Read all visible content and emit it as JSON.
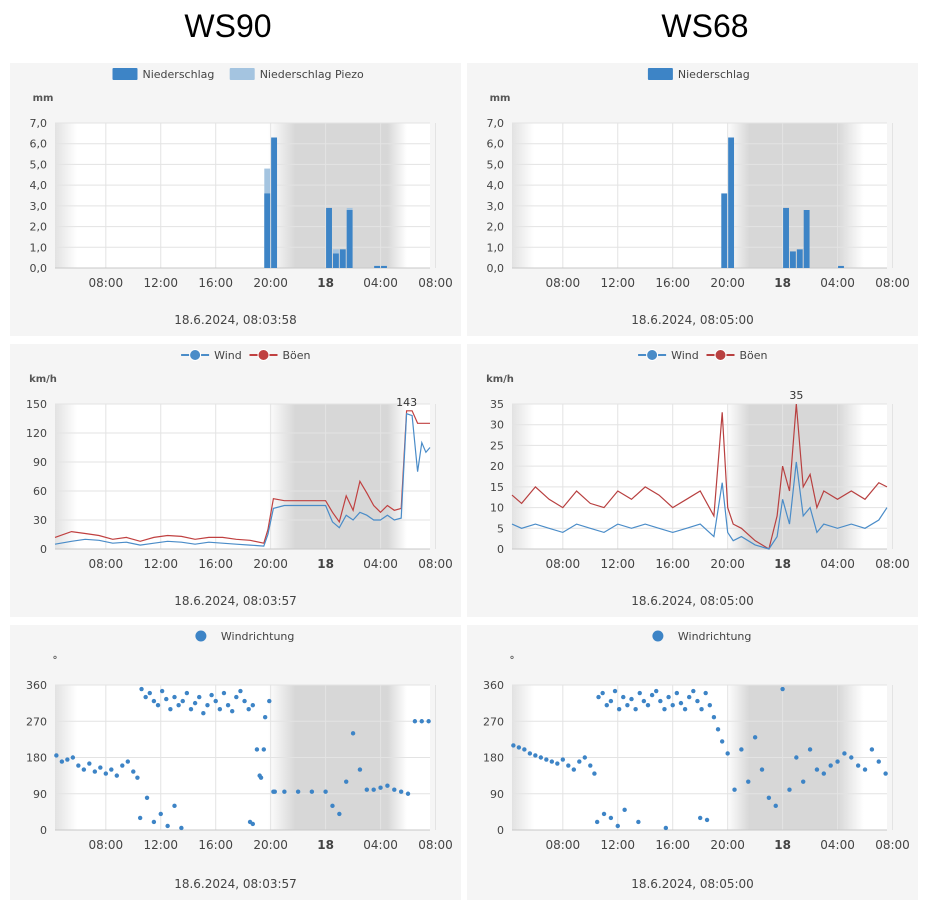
{
  "stations": [
    {
      "title": "WS90"
    },
    {
      "title": "WS68"
    }
  ],
  "chart_data": [
    {
      "id": "ws90-rain",
      "type": "bar",
      "station": "WS90",
      "legend": [
        "Niederschlag",
        "Niederschlag Piezo"
      ],
      "ylabel": "mm",
      "ylim": [
        0,
        7
      ],
      "yticks": [
        "0,0",
        "1,0",
        "2,0",
        "3,0",
        "4,0",
        "5,0",
        "6,0",
        "7,0"
      ],
      "xticks": [
        "08:00",
        "12:00",
        "16:00",
        "20:00",
        "18",
        "04:00",
        "08:00"
      ],
      "x_start_hour": 4.3,
      "x_end_hour": 31.6,
      "night": {
        "start": 19.8,
        "full_start": 21.8,
        "full_end": 28.5,
        "end": 29.9
      },
      "timestamp": "18.6.2024, 08:03:58",
      "series": [
        {
          "name": "Niederschlag Piezo",
          "x": [
            19.75,
            20.25,
            24.25,
            24.75,
            25.25,
            25.75,
            27.75,
            28.25
          ],
          "values": [
            4.8,
            6.2,
            2.8,
            0.9,
            0.9,
            2.9,
            0.1,
            0.1
          ]
        },
        {
          "name": "Niederschlag",
          "x": [
            19.75,
            20.25,
            24.25,
            24.75,
            25.25,
            25.75,
            27.75,
            28.25
          ],
          "values": [
            3.6,
            6.3,
            2.9,
            0.7,
            0.9,
            2.8,
            0.1,
            0.1
          ]
        }
      ]
    },
    {
      "id": "ws68-rain",
      "type": "bar",
      "station": "WS68",
      "legend": [
        "Niederschlag"
      ],
      "ylabel": "mm",
      "ylim": [
        0,
        7
      ],
      "yticks": [
        "0,0",
        "1,0",
        "2,0",
        "3,0",
        "4,0",
        "5,0",
        "6,0",
        "7,0"
      ],
      "xticks": [
        "08:00",
        "12:00",
        "16:00",
        "20:00",
        "18",
        "04:00",
        "08:00"
      ],
      "x_start_hour": 4.3,
      "x_end_hour": 31.6,
      "night": {
        "start": 19.9,
        "full_start": 21.6,
        "full_end": 28.0,
        "end": 29.9
      },
      "timestamp": "18.6.2024, 08:05:00",
      "series": [
        {
          "name": "Niederschlag",
          "x": [
            19.75,
            20.25,
            24.25,
            24.75,
            25.25,
            25.75,
            28.25
          ],
          "values": [
            3.6,
            6.3,
            2.9,
            0.8,
            0.9,
            2.8,
            0.1
          ]
        }
      ]
    },
    {
      "id": "ws90-wind",
      "type": "line",
      "station": "WS90",
      "legend": [
        "Wind",
        "Böen"
      ],
      "ylabel": "km/h",
      "ylim": [
        0,
        150
      ],
      "yticks": [
        "0",
        "30",
        "60",
        "90",
        "120",
        "150"
      ],
      "xticks": [
        "08:00",
        "12:00",
        "16:00",
        "20:00",
        "18",
        "04:00",
        "08:00"
      ],
      "x_start_hour": 4.3,
      "x_end_hour": 31.6,
      "night": {
        "start": 19.8,
        "full_start": 21.8,
        "full_end": 28.5,
        "end": 29.9
      },
      "max_label": "143",
      "timestamp": "18.6.2024, 08:03:57",
      "series": [
        {
          "name": "Wind",
          "color": "#4a8cc8",
          "x": [
            4.3,
            5.5,
            6.5,
            7.5,
            8.5,
            9.5,
            10.5,
            11.5,
            12.5,
            13.5,
            14.5,
            15.5,
            16.5,
            17.5,
            18.5,
            19.5,
            19.8,
            20.2,
            21,
            22,
            23,
            24,
            24.5,
            25,
            25.5,
            26,
            26.5,
            27,
            27.5,
            28,
            28.5,
            29,
            29.5,
            29.9,
            30.3,
            30.7,
            31,
            31.3,
            31.6
          ],
          "values": [
            5,
            8,
            10,
            9,
            6,
            7,
            4,
            6,
            8,
            7,
            5,
            7,
            6,
            5,
            4,
            3,
            15,
            42,
            45,
            45,
            45,
            45,
            28,
            22,
            35,
            30,
            38,
            35,
            30,
            30,
            35,
            30,
            32,
            140,
            138,
            80,
            110,
            100,
            105
          ]
        },
        {
          "name": "Böen",
          "color": "#c04040",
          "x": [
            4.3,
            5.5,
            6.5,
            7.5,
            8.5,
            9.5,
            10.5,
            11.5,
            12.5,
            13.5,
            14.5,
            15.5,
            16.5,
            17.5,
            18.5,
            19.5,
            19.8,
            20.2,
            21,
            22,
            23,
            24,
            24.5,
            25,
            25.5,
            26,
            26.5,
            27,
            27.5,
            28,
            28.5,
            29,
            29.5,
            29.9,
            30.3,
            30.7,
            31,
            31.6
          ],
          "values": [
            12,
            18,
            16,
            14,
            10,
            12,
            8,
            12,
            14,
            13,
            10,
            12,
            12,
            10,
            9,
            6,
            20,
            52,
            50,
            50,
            50,
            50,
            38,
            28,
            55,
            40,
            70,
            58,
            45,
            38,
            45,
            40,
            42,
            143,
            143,
            130,
            130,
            130
          ]
        }
      ]
    },
    {
      "id": "ws68-wind",
      "type": "line",
      "station": "WS68",
      "legend": [
        "Wind",
        "Böen"
      ],
      "ylabel": "km/h",
      "ylim": [
        0,
        35
      ],
      "yticks": [
        "0",
        "5",
        "10",
        "15",
        "20",
        "25",
        "30",
        "35"
      ],
      "xticks": [
        "08:00",
        "12:00",
        "16:00",
        "20:00",
        "18",
        "04:00",
        "08:00"
      ],
      "x_start_hour": 4.3,
      "x_end_hour": 31.6,
      "night": {
        "start": 19.9,
        "full_start": 21.6,
        "full_end": 28.0,
        "end": 29.9
      },
      "max_label": "35",
      "timestamp": "18.6.2024, 08:05:00",
      "series": [
        {
          "name": "Wind",
          "color": "#4a8cc8",
          "x": [
            4.3,
            5,
            6,
            7,
            8,
            9,
            10,
            11,
            12,
            13,
            14,
            15,
            16,
            17,
            18,
            19,
            19.6,
            20,
            20.4,
            21,
            22,
            23,
            23.6,
            24,
            24.5,
            25,
            25.5,
            26,
            26.5,
            27,
            28,
            29,
            30,
            31,
            31.6
          ],
          "values": [
            6,
            5,
            6,
            5,
            4,
            6,
            5,
            4,
            6,
            5,
            6,
            5,
            4,
            5,
            6,
            3,
            16,
            4,
            2,
            3,
            1,
            0,
            3,
            12,
            6,
            21,
            8,
            10,
            4,
            6,
            5,
            6,
            5,
            7,
            10
          ]
        },
        {
          "name": "Böen",
          "color": "#b84040",
          "x": [
            4.3,
            5,
            6,
            7,
            8,
            9,
            10,
            11,
            12,
            13,
            14,
            15,
            16,
            17,
            18,
            19,
            19.6,
            20,
            20.4,
            21,
            22,
            23,
            23.6,
            24,
            24.5,
            25,
            25.5,
            26,
            26.5,
            27,
            28,
            29,
            30,
            31,
            31.6
          ],
          "values": [
            13,
            11,
            15,
            12,
            10,
            14,
            11,
            10,
            14,
            12,
            15,
            13,
            10,
            12,
            14,
            8,
            33,
            10,
            6,
            5,
            2,
            0,
            8,
            20,
            14,
            35,
            15,
            18,
            10,
            14,
            12,
            14,
            12,
            16,
            15
          ]
        }
      ]
    },
    {
      "id": "ws90-dir",
      "type": "scatter",
      "station": "WS90",
      "legend": [
        "Windrichtung"
      ],
      "ylabel": "°",
      "ylim": [
        0,
        360
      ],
      "yticks": [
        "0",
        "90",
        "180",
        "270",
        "360"
      ],
      "xticks": [
        "08:00",
        "12:00",
        "16:00",
        "20:00",
        "18",
        "04:00",
        "08:00"
      ],
      "x_start_hour": 4.3,
      "x_end_hour": 31.6,
      "night": {
        "start": 19.8,
        "full_start": 21.8,
        "full_end": 28.5,
        "end": 29.9
      },
      "timestamp": "18.6.2024, 08:03:57",
      "series": [
        {
          "name": "Windrichtung",
          "x": [
            4.4,
            4.8,
            5.2,
            5.6,
            6.0,
            6.4,
            6.8,
            7.2,
            7.6,
            8.0,
            8.4,
            8.8,
            9.2,
            9.6,
            10.0,
            10.3,
            10.6,
            10.9,
            11.2,
            11.5,
            11.8,
            12.1,
            12.4,
            12.7,
            13.0,
            13.3,
            13.6,
            13.9,
            14.2,
            14.5,
            14.8,
            15.1,
            15.4,
            15.7,
            16.0,
            16.3,
            16.6,
            16.9,
            17.2,
            17.5,
            17.8,
            18.1,
            18.4,
            18.7,
            19.0,
            19.3,
            19.6,
            19.9,
            20.2,
            10.5,
            11.0,
            11.5,
            12.0,
            12.5,
            13.0,
            13.5,
            18.5,
            18.7,
            19.2,
            19.5,
            20.3,
            21,
            22,
            23,
            24,
            24.5,
            25,
            25.5,
            26,
            26.5,
            27,
            27.5,
            28,
            28.5,
            29,
            29.5,
            30,
            30.5,
            31,
            31.5
          ],
          "values": [
            185,
            170,
            175,
            180,
            160,
            150,
            165,
            145,
            155,
            140,
            150,
            135,
            160,
            170,
            145,
            130,
            350,
            330,
            340,
            320,
            310,
            345,
            325,
            300,
            330,
            310,
            320,
            340,
            300,
            315,
            330,
            290,
            310,
            335,
            320,
            300,
            340,
            310,
            295,
            330,
            345,
            320,
            300,
            310,
            200,
            130,
            280,
            320,
            95,
            30,
            80,
            20,
            40,
            10,
            60,
            5,
            20,
            15,
            135,
            200,
            95,
            95,
            95,
            95,
            95,
            60,
            40,
            120,
            240,
            150,
            100,
            100,
            105,
            110,
            100,
            95,
            90,
            270,
            270,
            270
          ]
        }
      ]
    },
    {
      "id": "ws68-dir",
      "type": "scatter",
      "station": "WS68",
      "legend": [
        "Windrichtung"
      ],
      "ylabel": "°",
      "ylim": [
        0,
        360
      ],
      "yticks": [
        "0",
        "90",
        "180",
        "270",
        "360"
      ],
      "xticks": [
        "08:00",
        "12:00",
        "16:00",
        "20:00",
        "18",
        "04:00",
        "08:00"
      ],
      "x_start_hour": 4.3,
      "x_end_hour": 31.6,
      "night": {
        "start": 19.9,
        "full_start": 21.6,
        "full_end": 28.0,
        "end": 29.9
      },
      "timestamp": "18.6.2024, 08:05:00",
      "series": [
        {
          "name": "Windrichtung",
          "x": [
            4.4,
            4.8,
            5.2,
            5.6,
            6.0,
            6.4,
            6.8,
            7.2,
            7.6,
            8.0,
            8.4,
            8.8,
            9.2,
            9.6,
            10.0,
            10.3,
            10.6,
            10.9,
            11.2,
            11.5,
            11.8,
            12.1,
            12.4,
            12.7,
            13.0,
            13.3,
            13.6,
            13.9,
            14.2,
            14.5,
            14.8,
            15.1,
            15.4,
            15.7,
            16.0,
            16.3,
            16.6,
            16.9,
            17.2,
            17.5,
            17.8,
            18.1,
            18.4,
            18.7,
            19.0,
            19.3,
            19.6,
            20.0,
            20.5,
            21.0,
            21.5,
            22.0,
            22.5,
            23.0,
            23.5,
            24.0,
            24.5,
            25.0,
            25.5,
            26.0,
            26.5,
            27.0,
            27.5,
            28.0,
            28.5,
            29.0,
            29.5,
            30.0,
            30.5,
            31.0,
            31.5,
            10.5,
            11.0,
            11.5,
            12.0,
            12.5,
            13.5,
            15.5,
            18.0,
            18.5
          ],
          "values": [
            210,
            205,
            200,
            190,
            185,
            180,
            175,
            170,
            165,
            175,
            160,
            150,
            170,
            180,
            160,
            140,
            330,
            340,
            310,
            320,
            345,
            300,
            330,
            310,
            325,
            300,
            340,
            320,
            310,
            335,
            345,
            320,
            300,
            330,
            310,
            340,
            315,
            300,
            330,
            345,
            320,
            300,
            340,
            310,
            280,
            250,
            220,
            190,
            100,
            200,
            120,
            230,
            150,
            80,
            60,
            350,
            100,
            180,
            120,
            200,
            150,
            140,
            160,
            170,
            190,
            180,
            160,
            150,
            200,
            170,
            140,
            20,
            40,
            30,
            10,
            50,
            20,
            5,
            30,
            25
          ]
        }
      ]
    }
  ]
}
